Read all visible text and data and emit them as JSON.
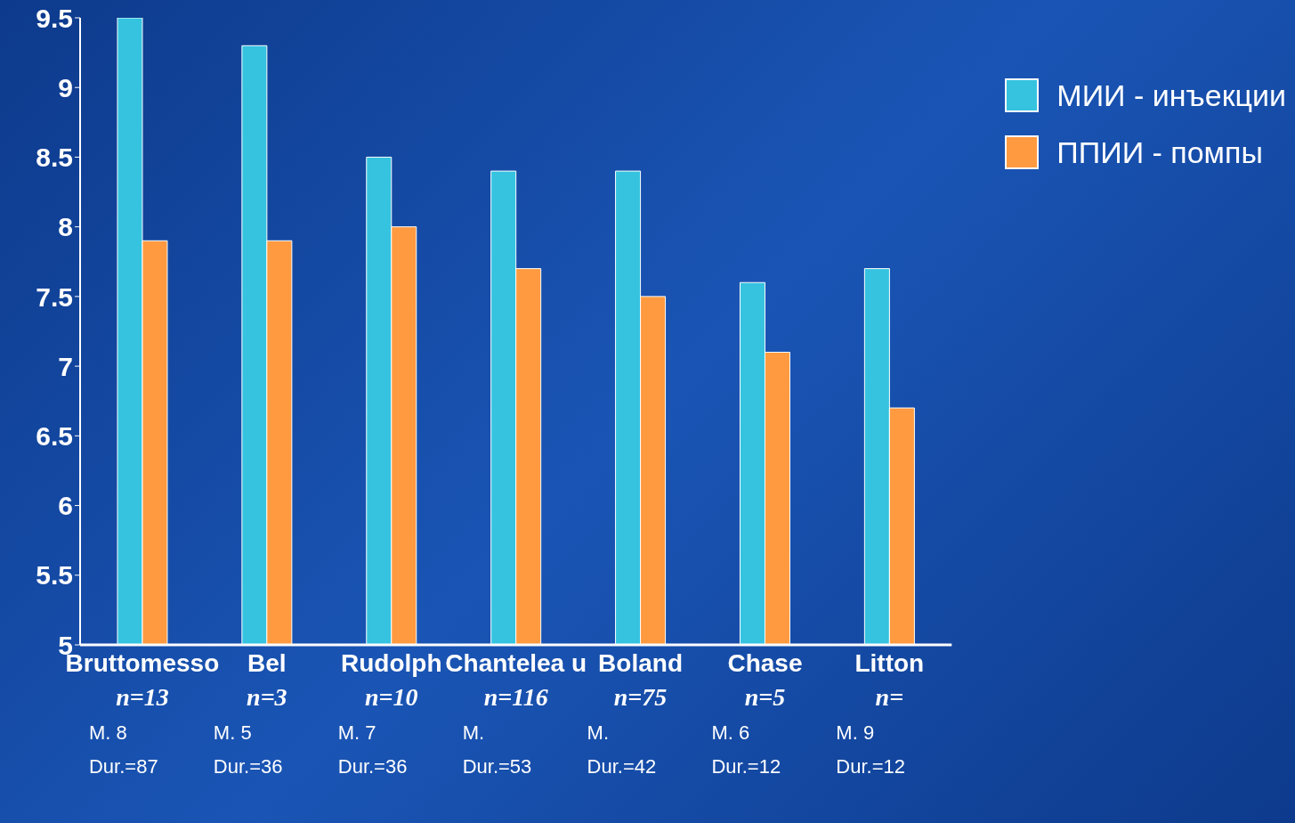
{
  "chart_data": {
    "type": "bar",
    "categories": [
      "Bruttomesso\nn=13\nM. 8\nDur.=87",
      "Bel\nn=3\nM. 5\nDur.=36",
      "Rudolph\nn=10\nM. 7\nDur.=36",
      "Chantelea u\nn=116\nM.\nDur.=53",
      "Boland\nn=75\nM.\nDur.=42",
      "Chase\nn=5\nM. 6\nDur.=12",
      "Litton\nn=\nM. 9\nDur.=12"
    ],
    "series": [
      {
        "name": "МИИ - инъекции",
        "color": "#35c3e0",
        "values": [
          9.5,
          9.3,
          8.5,
          8.4,
          8.4,
          7.6,
          7.7
        ]
      },
      {
        "name": "ППИИ - помпы",
        "color": "#ff9a40",
        "values": [
          7.9,
          7.9,
          8.0,
          7.7,
          7.5,
          7.1,
          6.7
        ]
      }
    ],
    "ylim": [
      5,
      9.5
    ],
    "yticks": [
      5,
      5.5,
      6,
      6.5,
      7,
      7.5,
      8,
      8.5,
      9,
      9.5
    ],
    "legend": "top right"
  }
}
